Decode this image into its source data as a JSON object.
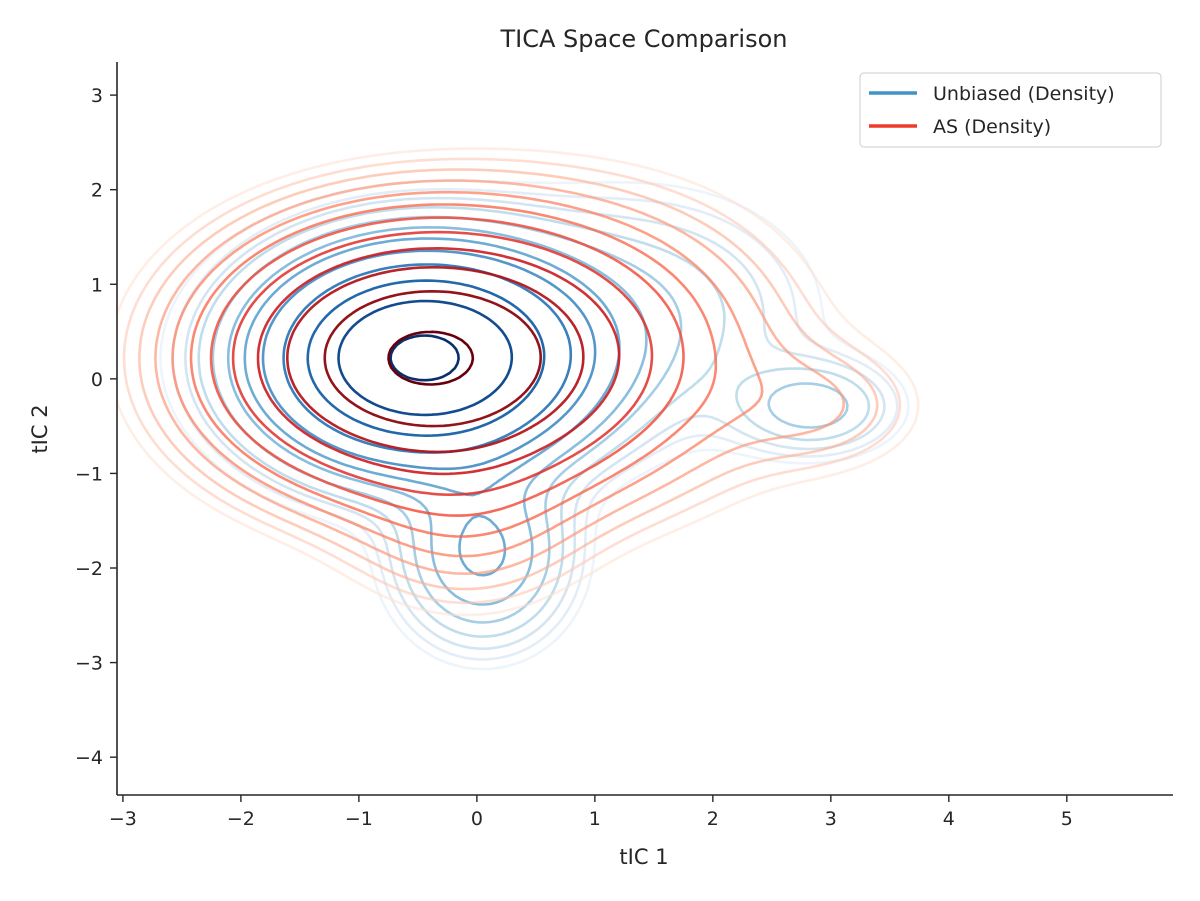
{
  "chart_data": {
    "type": "contour",
    "title": "TICA Space Comparison",
    "xlabel": "tIC 1",
    "ylabel": "tIC 2",
    "xlim": [
      -3.05,
      5.9
    ],
    "ylim": [
      -4.4,
      3.35
    ],
    "x_ticks": [
      -3,
      -2,
      -1,
      0,
      1,
      2,
      3,
      4,
      5
    ],
    "y_ticks": [
      -4,
      -3,
      -2,
      -1,
      0,
      1,
      2,
      3
    ],
    "x_tick_labels": [
      "−3",
      "−2",
      "−1",
      "0",
      "1",
      "2",
      "3",
      "4",
      "5"
    ],
    "y_tick_labels": [
      "−4",
      "−3",
      "−2",
      "−1",
      "0",
      "1",
      "2",
      "3"
    ],
    "grid": false,
    "legend_position": "top-right",
    "series": [
      {
        "name": "Unbiased (Density)",
        "color": "#4292c6",
        "colormap": "Blues",
        "levels": 12,
        "components": [
          {
            "cx": -0.45,
            "cy": 0.22,
            "sx": 0.75,
            "sy": 0.62,
            "w": 1.0
          },
          {
            "cx": 0.05,
            "cy": -1.85,
            "sx": 0.42,
            "sy": 0.55,
            "w": 0.14
          },
          {
            "cx": 2.85,
            "cy": -0.3,
            "sx": 0.42,
            "sy": 0.3,
            "w": 0.07
          },
          {
            "cx": 1.4,
            "cy": 0.7,
            "sx": 0.9,
            "sy": 0.8,
            "w": 0.05
          }
        ]
      },
      {
        "name": "AS (Density)",
        "color": "#ef3b2c",
        "colormap": "Reds",
        "levels": 12,
        "components": [
          {
            "cx": -0.45,
            "cy": 0.22,
            "sx": 0.9,
            "sy": 0.72,
            "w": 1.0
          },
          {
            "cx": 0.9,
            "cy": 0.3,
            "sx": 1.0,
            "sy": 0.9,
            "w": 0.12
          },
          {
            "cx": 2.9,
            "cy": -0.3,
            "sx": 0.55,
            "sy": 0.42,
            "w": 0.035
          },
          {
            "cx": -0.1,
            "cy": -1.4,
            "sx": 0.6,
            "sy": 0.6,
            "w": 0.06
          }
        ]
      }
    ]
  }
}
